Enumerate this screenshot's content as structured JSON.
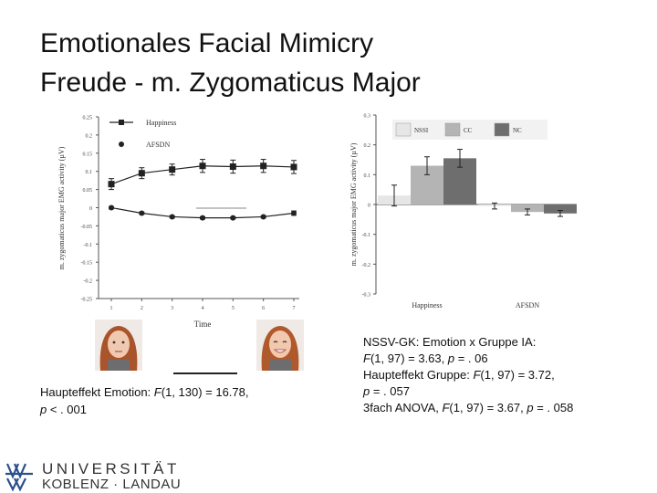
{
  "slide": {
    "title_line1": "Emotionales Facial Mimicry",
    "title_line2": "Freude - m. Zygomaticus Major"
  },
  "stats_left": {
    "line1_a": "Haupteffekt Emotion: ",
    "line1_f": "F",
    "line1_b": "(1, 130) = 16.78,",
    "line2_p": "p",
    "line2_b": " < . 001"
  },
  "stats_right": {
    "l1_a": "NSSV-GK",
    "l1_b": ": Emotion x Gruppe IA:",
    "l2_f": "F",
    "l2_b": "(1, 97) = 3.63, ",
    "l2_p": "p",
    "l2_c": " = . 06",
    "l3_a": "Haupteffekt Gruppe: ",
    "l3_f": "F",
    "l3_b": "(1, 97) = 3.72,",
    "l4_p": "p",
    "l4_b": " = . 057",
    "l5_a": "3fach ANOVA, ",
    "l5_f": "F",
    "l5_b": "(1, 97) = 3.67, ",
    "l5_p": "p",
    "l5_c": " = . 058"
  },
  "logo": {
    "line1": "UNIVERSITÄT",
    "line2": "KOBLENZ · LANDAU"
  },
  "chart_data": [
    {
      "type": "line",
      "xlabel": "Time",
      "ylabel": "m. zygomaticus major EMG activity (µV)",
      "x": [
        1,
        2,
        3,
        4,
        5,
        6,
        7
      ],
      "ylim": [
        -0.25,
        0.25
      ],
      "yticks": [
        "0.25",
        "0.2",
        "0.15",
        "0.1",
        "0.05",
        "0",
        "-0.05",
        "-0.1",
        "-0.15",
        "-0.2",
        "-0.25"
      ],
      "legend_position": "top",
      "series": [
        {
          "name": "Happiness",
          "marker": "square",
          "values": [
            0.065,
            0.095,
            0.105,
            0.115,
            0.113,
            0.115,
            0.112
          ],
          "errors": [
            0.015,
            0.015,
            0.015,
            0.018,
            0.018,
            0.018,
            0.018
          ]
        },
        {
          "name": "AFSDN",
          "marker": "circle",
          "values": [
            0.0,
            -0.015,
            -0.025,
            -0.028,
            -0.028,
            -0.025,
            -0.015
          ],
          "errors": [
            0.003,
            0.003,
            0.003,
            0.003,
            0.003,
            0.003,
            0.006
          ]
        }
      ]
    },
    {
      "type": "bar",
      "ylabel": "m. zygomaticus major EMG activity (µV)",
      "categories": [
        "Happiness",
        "AFSDN"
      ],
      "ylim": [
        -0.3,
        0.3
      ],
      "yticks": [
        "0.3",
        "0.2",
        "0.1",
        "0",
        "-0.1",
        "-0.2",
        "-0.3"
      ],
      "legend_position": "top",
      "series": [
        {
          "name": "NSSI",
          "color": "#e6e6e6",
          "values": [
            0.03,
            -0.005
          ],
          "errors": [
            0.035,
            0.01
          ]
        },
        {
          "name": "CC",
          "color": "#b4b4b4",
          "values": [
            0.13,
            -0.025
          ],
          "errors": [
            0.03,
            0.01
          ]
        },
        {
          "name": "NC",
          "color": "#6e6e6e",
          "values": [
            0.155,
            -0.03
          ],
          "errors": [
            0.03,
            0.01
          ]
        }
      ]
    }
  ]
}
